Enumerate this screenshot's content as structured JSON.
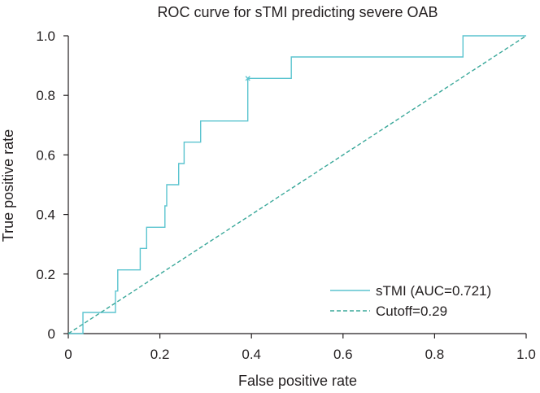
{
  "chart_data": {
    "type": "line",
    "title": "ROC curve for sTMI predicting severe OAB",
    "xlabel": "False positive rate",
    "ylabel": "True positive rate",
    "xlim": [
      0,
      1
    ],
    "ylim": [
      0,
      1
    ],
    "xticks": [
      "0",
      "0.2",
      "0.4",
      "0.6",
      "0.8",
      "1.0"
    ],
    "yticks": [
      "0",
      "0.2",
      "0.4",
      "0.6",
      "0.8",
      "1.0"
    ],
    "grid": false,
    "legend_position": "bottom-right",
    "series": [
      {
        "name": "sTMI (AUC=0.721)",
        "style": "solid",
        "color": "#5bc4cf",
        "x": [
          0,
          0.032,
          0.032,
          0.103,
          0.103,
          0.108,
          0.108,
          0.157,
          0.157,
          0.171,
          0.171,
          0.211,
          0.211,
          0.215,
          0.215,
          0.241,
          0.241,
          0.253,
          0.253,
          0.289,
          0.289,
          0.392,
          0.392,
          0.487,
          0.487,
          0.862,
          0.862,
          1.0
        ],
        "y": [
          0,
          0,
          0.071,
          0.071,
          0.143,
          0.143,
          0.214,
          0.214,
          0.286,
          0.286,
          0.357,
          0.357,
          0.429,
          0.429,
          0.5,
          0.5,
          0.571,
          0.571,
          0.643,
          0.643,
          0.714,
          0.714,
          0.857,
          0.857,
          0.929,
          0.929,
          1.0,
          1.0
        ]
      },
      {
        "name": "Cutoff=0.29",
        "style": "dashed",
        "color": "#3aa89a",
        "x": [
          0,
          1
        ],
        "y": [
          0,
          1
        ]
      }
    ],
    "cutoff_point": {
      "x": 0.392,
      "y": 0.857,
      "marker": "x"
    }
  }
}
